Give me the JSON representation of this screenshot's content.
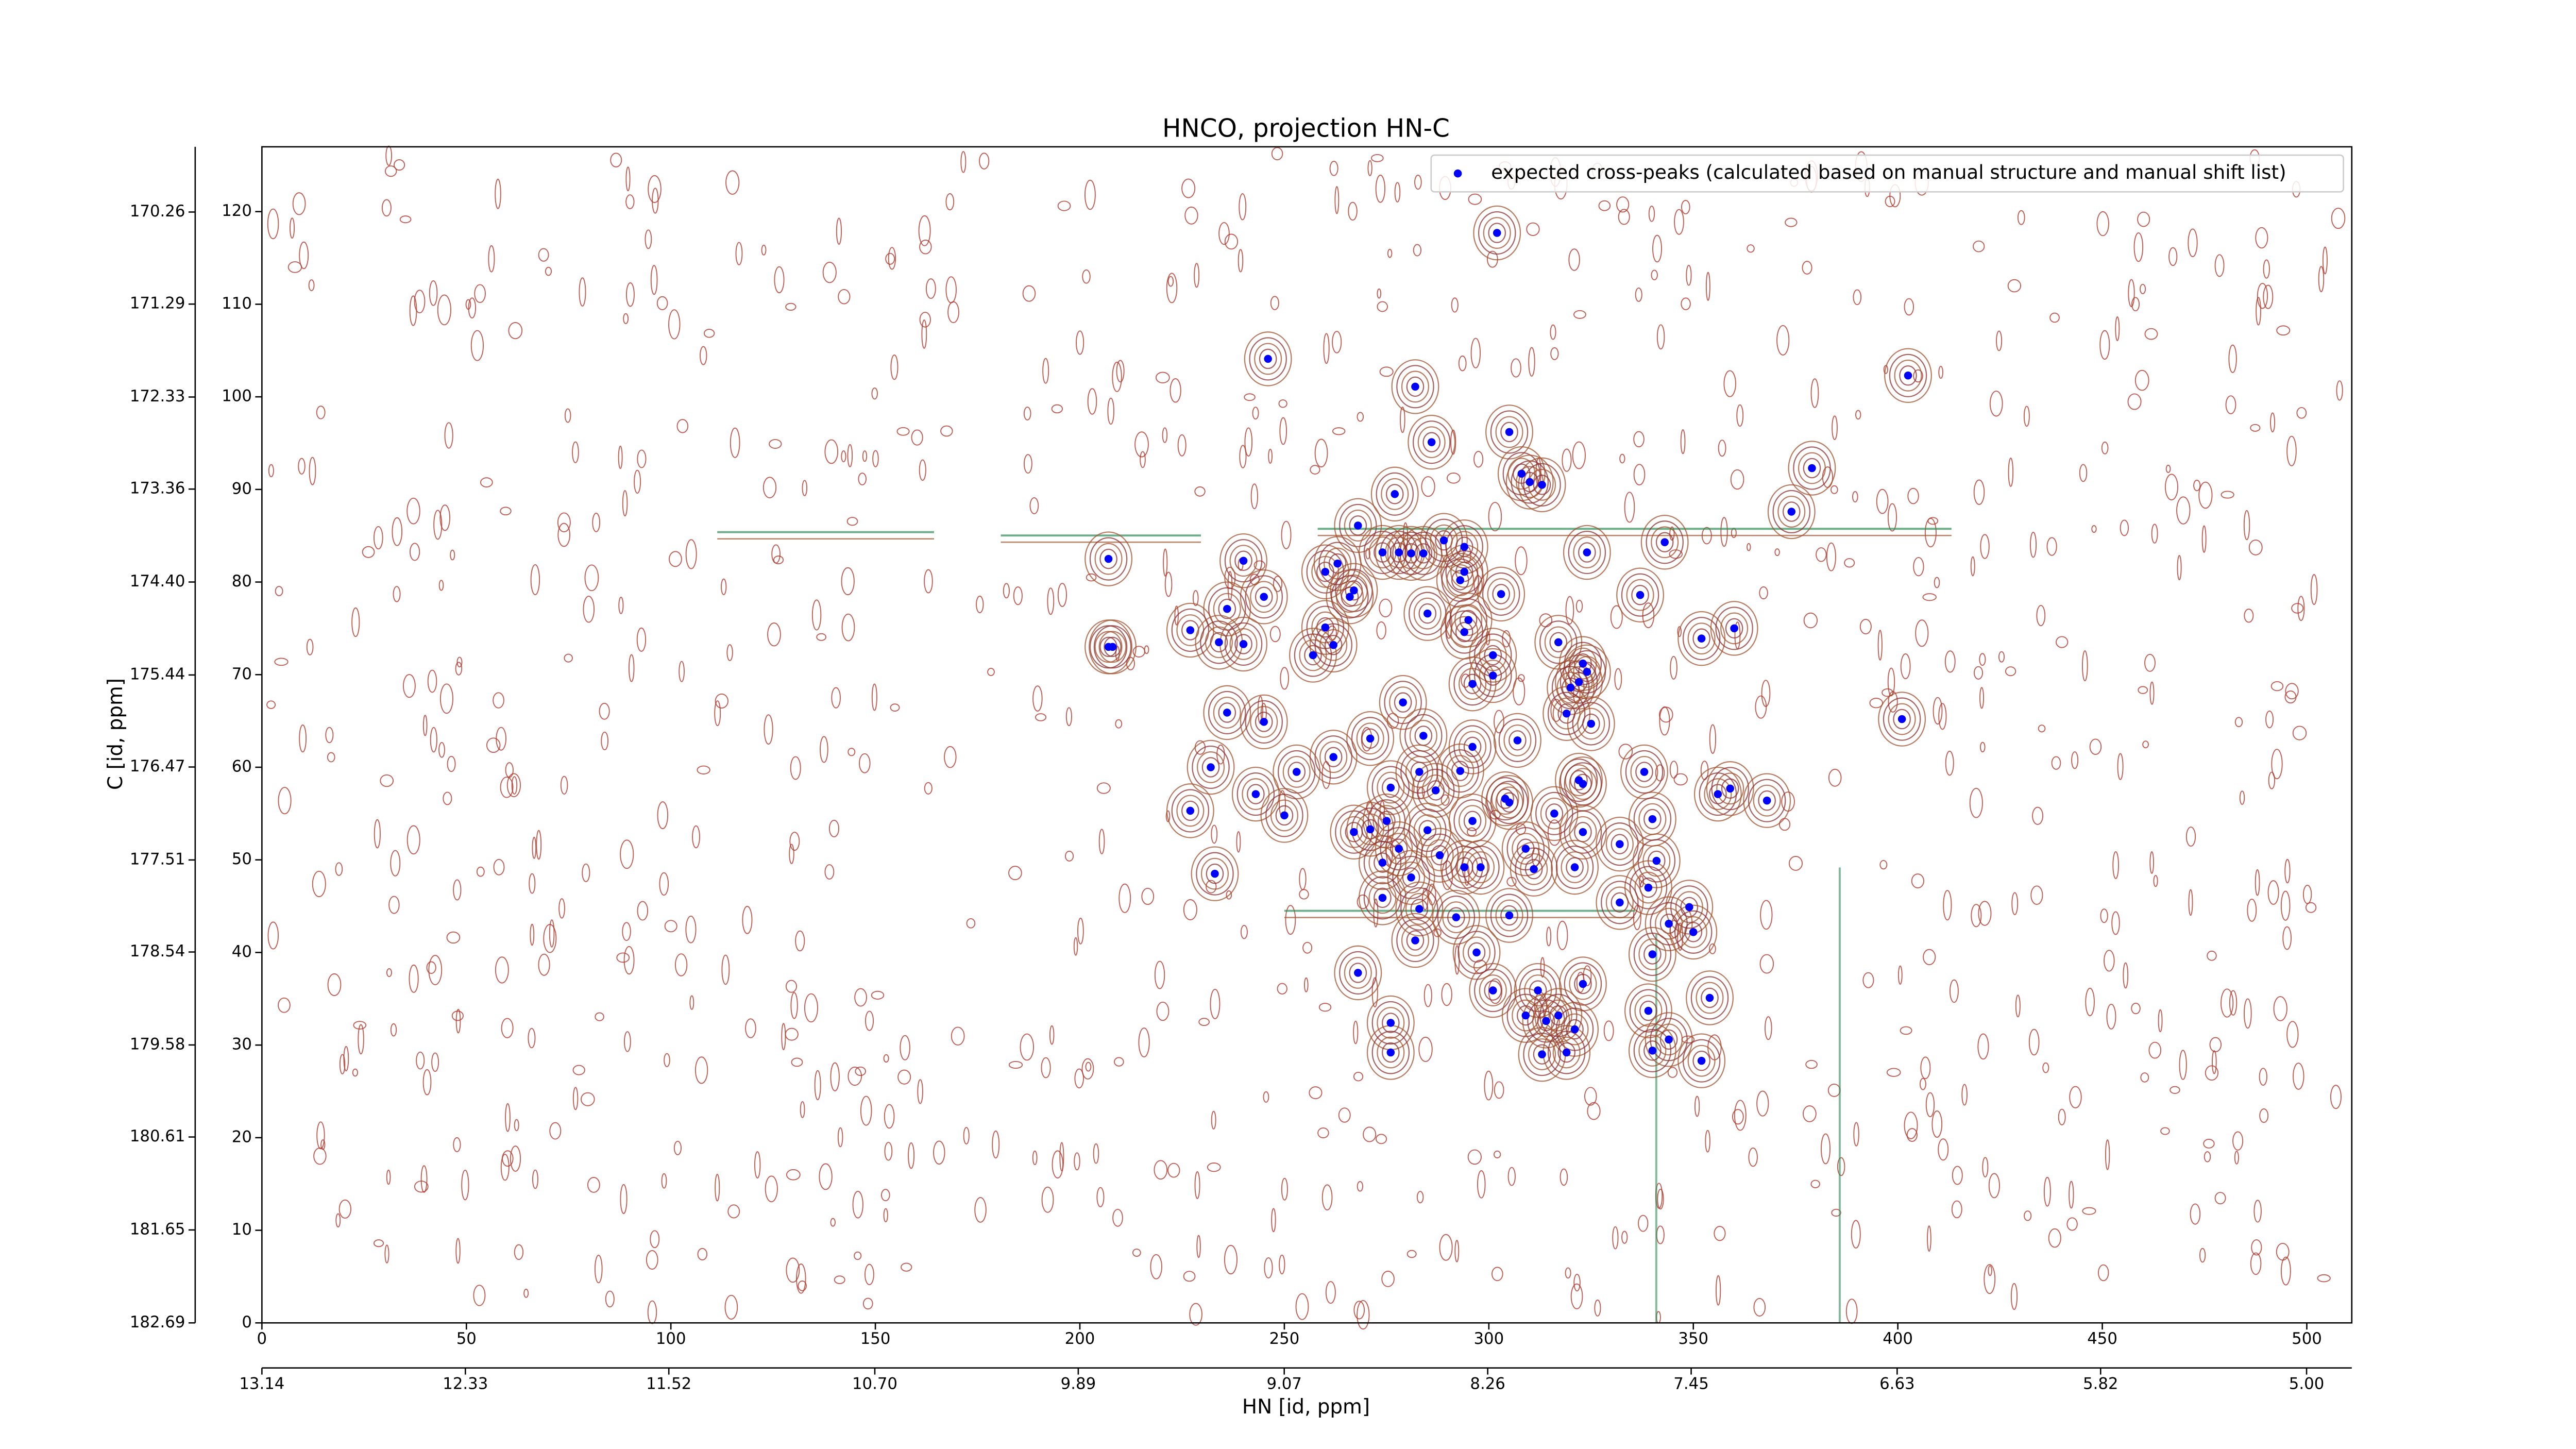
{
  "chart_data": {
    "type": "scatter",
    "title": "HNCO, projection HN-C",
    "xlabel": "HN [id, ppm]",
    "ylabel": "C [id, ppm]",
    "xlim": [
      0,
      511
    ],
    "xticks": [
      0,
      50,
      100,
      150,
      200,
      250,
      300,
      350,
      400,
      450,
      500
    ],
    "x2lim": [
      13.14,
      4.82
    ],
    "x2ticks": [
      13.14,
      12.33,
      11.52,
      {
        "value": 10.7,
        "label": "10.70"
      },
      9.89,
      9.07,
      8.26,
      7.45,
      6.63,
      5.82,
      {
        "value": 5,
        "label": "5.00"
      }
    ],
    "ylim": [
      0,
      127
    ],
    "yticks": [
      0,
      10,
      20,
      30,
      40,
      50,
      60,
      70,
      80,
      90,
      100,
      110,
      120
    ],
    "y2lim": [
      182.69,
      169.53
    ],
    "y2ticks": [
      182.69,
      181.65,
      180.61,
      179.58,
      178.54,
      177.51,
      176.47,
      175.44,
      {
        "value": 174.4,
        "label": "174.40"
      },
      173.36,
      172.33,
      171.29,
      170.26
    ],
    "legend": "upper right",
    "series": [
      {
        "name": "expected cross-peaks (calculated based on manual structure and manual shift list)",
        "color": "#0000ff",
        "x": [
          302,
          246,
          282,
          402.5,
          286,
          305,
          308,
          310,
          313,
          277,
          379,
          374,
          268,
          207,
          240,
          274,
          278,
          281,
          284,
          289,
          294,
          294,
          293,
          324,
          343,
          260,
          263,
          267,
          266,
          245,
          303,
          337,
          236,
          285,
          295,
          294,
          227,
          260,
          207,
          208,
          234,
          240,
          317,
          352,
          360,
          257,
          262,
          301,
          323,
          322,
          324,
          296,
          301,
          320,
          319,
          279,
          236,
          245,
          401,
          325,
          307,
          284,
          296,
          271,
          262,
          232,
          253,
          293,
          283,
          338,
          322,
          323,
          276,
          287,
          304,
          305,
          243,
          356,
          359,
          368,
          227,
          250,
          316,
          340,
          296,
          275,
          267,
          271,
          285,
          323,
          332,
          278,
          309,
          274,
          288,
          294,
          298,
          311,
          321,
          341,
          233,
          281,
          339,
          274,
          332,
          349,
          283,
          292,
          305,
          344,
          350,
          282,
          297,
          340,
          268,
          301,
          312,
          323,
          354,
          339,
          309,
          314,
          317,
          276,
          321,
          344,
          340,
          276,
          313,
          319,
          352
        ],
        "y": [
          117.7,
          104.1,
          101.1,
          102.3,
          95.1,
          96.2,
          91.7,
          90.8,
          90.5,
          89.5,
          92.3,
          87.6,
          86.1,
          82.5,
          82.3,
          83.2,
          83.2,
          83.1,
          83.1,
          84.5,
          83.8,
          81.1,
          80.2,
          83.2,
          84.3,
          81.1,
          82,
          79.1,
          78.4,
          78.4,
          78.7,
          78.6,
          77.1,
          76.6,
          75.9,
          74.6,
          74.8,
          75.1,
          73,
          73,
          73.5,
          73.3,
          73.5,
          73.9,
          75,
          72.1,
          73.2,
          72.1,
          71.2,
          69.2,
          70.3,
          69,
          69.9,
          68.6,
          65.8,
          67,
          65.9,
          64.9,
          65.2,
          64.7,
          62.9,
          63.4,
          62.2,
          63.1,
          61.1,
          60,
          59.5,
          59.6,
          59.5,
          59.5,
          58.6,
          58.2,
          57.8,
          57.5,
          56.6,
          56.2,
          57.1,
          57.1,
          57.7,
          56.4,
          55.3,
          54.8,
          55,
          54.4,
          54.2,
          54.2,
          53,
          53.3,
          53.2,
          53,
          51.7,
          51.2,
          51.2,
          49.7,
          50.5,
          49.2,
          49.2,
          49,
          49.2,
          49.9,
          48.5,
          48.1,
          47,
          45.9,
          45.4,
          44.9,
          44.7,
          43.8,
          44,
          43.1,
          42.2,
          41.3,
          40,
          39.8,
          37.8,
          35.9,
          35.9,
          36.6,
          35.1,
          33.7,
          33.2,
          32.6,
          33.2,
          32.4,
          31.7,
          30.6,
          29.4,
          29.2,
          29,
          29.2,
          28.3
        ]
      }
    ]
  }
}
